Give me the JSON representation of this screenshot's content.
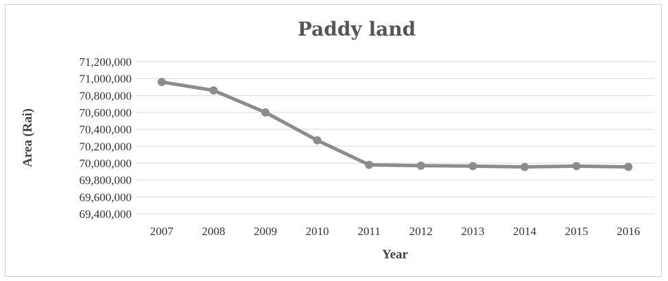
{
  "chart_data": {
    "type": "line",
    "title": "Paddy land",
    "xlabel": "Year",
    "ylabel": "Area (Rai)",
    "categories": [
      "2007",
      "2008",
      "2009",
      "2010",
      "2011",
      "2012",
      "2013",
      "2014",
      "2015",
      "2016"
    ],
    "series": [
      {
        "values": [
          70960000,
          70860000,
          70600000,
          70270000,
          69980000,
          69970000,
          69965000,
          69955000,
          69965000,
          69955000
        ],
        "color": "#8c8c8c"
      }
    ],
    "ylim": [
      69400000,
      71200000
    ],
    "yticks": [
      "69,400,000",
      "69,600,000",
      "69,800,000",
      "70,000,000",
      "70,200,000",
      "70,400,000",
      "70,600,000",
      "70,800,000",
      "71,000,000",
      "71,200,000"
    ],
    "grid": true,
    "legend": "none"
  }
}
